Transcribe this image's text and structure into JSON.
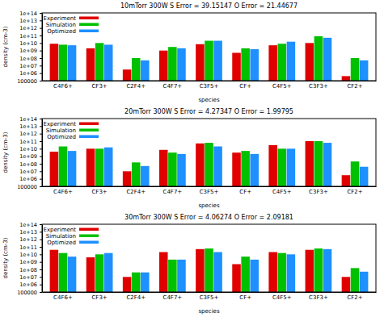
{
  "chart_data": [
    {
      "type": "bar",
      "title": "10mTorr 300W  S Error = 39.15147  O Error = 21.44677",
      "x_label": "species",
      "y_label": "density (cm-3)",
      "categories": [
        "C4F6+",
        "CF3+",
        "C2F4+",
        "C4F7+",
        "C3F5+",
        "CF+",
        "C4F5+",
        "C3F3+",
        "CF2+"
      ],
      "series": [
        {
          "name": "Experiment",
          "color": "#e00000",
          "values": [
            8000000000.0,
            2000000000.0,
            3000000.0,
            1000000000.0,
            7000000000.0,
            500000000.0,
            5000000000.0,
            10000000000.0,
            400000.0
          ]
        },
        {
          "name": "Simulation",
          "color": "#00c000",
          "values": [
            6000000000.0,
            10000000000.0,
            100000000.0,
            3000000000.0,
            20000000000.0,
            2000000000.0,
            8000000000.0,
            80000000000.0,
            100000000.0
          ]
        },
        {
          "name": "Optimized",
          "color": "#1e90ff",
          "values": [
            5000000000.0,
            6000000000.0,
            50000000.0,
            2000000000.0,
            20000000000.0,
            1500000000.0,
            15000000000.0,
            50000000000.0,
            50000000.0
          ]
        }
      ],
      "ylim": [
        100000,
        100000000000000.0
      ],
      "yticks": [
        100000,
        {
          "value": 1000000.0,
          "label": "1e+06"
        },
        {
          "value": 10000000.0,
          "label": "1e+07"
        },
        {
          "value": 100000000.0,
          "label": "1e+08"
        },
        {
          "value": 1000000000.0,
          "label": "1e+09"
        },
        {
          "value": 10000000000.0,
          "label": "1e+10"
        },
        {
          "value": 100000000000.0,
          "label": "1e+11"
        },
        {
          "value": 1000000000000.0,
          "label": "1e+12"
        },
        {
          "value": 10000000000000.0,
          "label": "1e+13"
        },
        {
          "value": 100000000000000.0,
          "label": "1e+14"
        }
      ],
      "log": "y",
      "grid": false,
      "legend": "upper left"
    },
    {
      "type": "bar",
      "title": "20mTorr 300W  S Error = 4.27347  O Error = 1.99795",
      "x_label": "species",
      "y_label": "density (cm-3)",
      "categories": [
        "C4F6+",
        "CF3+",
        "C2F4+",
        "C4F7+",
        "C3F5+",
        "CF+",
        "C4F5+",
        "C3F3+",
        "CF2+"
      ],
      "series": [
        {
          "name": "Experiment",
          "color": "#e00000",
          "values": [
            4000000000.0,
            10000000000.0,
            10000000.0,
            7000000000.0,
            50000000000.0,
            3000000000.0,
            30000000000.0,
            100000000000.0,
            3000000.0
          ]
        },
        {
          "name": "Simulation",
          "color": "#00c000",
          "values": [
            20000000000.0,
            10000000000.0,
            150000000.0,
            3000000000.0,
            60000000000.0,
            5000000000.0,
            10000000000.0,
            100000000000.0,
            200000000.0
          ]
        },
        {
          "name": "Optimized",
          "color": "#1e90ff",
          "values": [
            5000000000.0,
            15000000000.0,
            50000000.0,
            2000000000.0,
            20000000000.0,
            2000000000.0,
            10000000000.0,
            60000000000.0,
            40000000.0
          ]
        }
      ],
      "ylim": [
        100000,
        100000000000000.0
      ],
      "yticks": [
        100000,
        {
          "value": 1000000.0,
          "label": "1e+06"
        },
        {
          "value": 10000000.0,
          "label": "1e+07"
        },
        {
          "value": 100000000.0,
          "label": "1e+08"
        },
        {
          "value": 1000000000.0,
          "label": "1e+09"
        },
        {
          "value": 10000000000.0,
          "label": "1e+10"
        },
        {
          "value": 100000000000.0,
          "label": "1e+11"
        },
        {
          "value": 1000000000000.0,
          "label": "1e+12"
        },
        {
          "value": 10000000000000.0,
          "label": "1e+13"
        },
        {
          "value": 100000000000000.0,
          "label": "1e+14"
        }
      ],
      "log": "y",
      "grid": false,
      "legend": "upper left"
    },
    {
      "type": "bar",
      "title": "30mTorr 300W  S Error = 4.06274  O Error = 2.09181",
      "x_label": "species",
      "y_label": "density (cm-3)",
      "categories": [
        "C4F6+",
        "CF3+",
        "C2F4+",
        "C4F7+",
        "C3F5+",
        "CF+",
        "C4F5+",
        "C3F3+",
        "CF2+"
      ],
      "series": [
        {
          "name": "Experiment",
          "color": "#e00000",
          "values": [
            40000000000.0,
            4000000000.0,
            10000000.0,
            20000000000.0,
            50000000000.0,
            500000000.0,
            20000000000.0,
            40000000000.0,
            10000000.0
          ]
        },
        {
          "name": "Simulation",
          "color": "#00c000",
          "values": [
            15000000000.0,
            10000000000.0,
            40000000.0,
            2000000000.0,
            60000000000.0,
            5000000000.0,
            15000000000.0,
            60000000000.0,
            150000000.0
          ]
        },
        {
          "name": "Optimized",
          "color": "#1e90ff",
          "values": [
            5000000000.0,
            15000000000.0,
            40000000.0,
            2000000000.0,
            20000000000.0,
            2000000000.0,
            10000000000.0,
            50000000000.0,
            50000000.0
          ]
        }
      ],
      "ylim": [
        100000,
        100000000000000.0
      ],
      "yticks": [
        100000,
        {
          "value": 1000000.0,
          "label": "1e+06"
        },
        {
          "value": 10000000.0,
          "label": "1e+07"
        },
        {
          "value": 100000000.0,
          "label": "1e+08"
        },
        {
          "value": 1000000000.0,
          "label": "1e+09"
        },
        {
          "value": 10000000000.0,
          "label": "1e+10"
        },
        {
          "value": 100000000000.0,
          "label": "1e+11"
        },
        {
          "value": 1000000000000.0,
          "label": "1e+12"
        },
        {
          "value": 10000000000000.0,
          "label": "1e+13"
        },
        {
          "value": 100000000000000.0,
          "label": "1e+14"
        }
      ],
      "log": "y",
      "grid": false,
      "legend": "upper left"
    }
  ]
}
